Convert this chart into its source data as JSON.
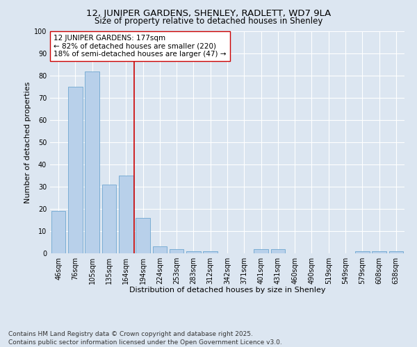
{
  "title_line1": "12, JUNIPER GARDENS, SHENLEY, RADLETT, WD7 9LA",
  "title_line2": "Size of property relative to detached houses in Shenley",
  "xlabel": "Distribution of detached houses by size in Shenley",
  "ylabel": "Number of detached properties",
  "categories": [
    "46sqm",
    "76sqm",
    "105sqm",
    "135sqm",
    "164sqm",
    "194sqm",
    "224sqm",
    "253sqm",
    "283sqm",
    "312sqm",
    "342sqm",
    "371sqm",
    "401sqm",
    "431sqm",
    "460sqm",
    "490sqm",
    "519sqm",
    "549sqm",
    "579sqm",
    "608sqm",
    "638sqm"
  ],
  "values": [
    19,
    75,
    82,
    31,
    35,
    16,
    3,
    2,
    1,
    1,
    0,
    0,
    2,
    2,
    0,
    0,
    0,
    0,
    1,
    1,
    1
  ],
  "bar_color": "#b8d0ea",
  "bar_edgecolor": "#6ea6d0",
  "vline_color": "#cc0000",
  "annotation_text": "12 JUNIPER GARDENS: 177sqm\n← 82% of detached houses are smaller (220)\n18% of semi-detached houses are larger (47) →",
  "annotation_box_color": "#ffffff",
  "annotation_box_edgecolor": "#cc0000",
  "ylim": [
    0,
    100
  ],
  "yticks": [
    0,
    10,
    20,
    30,
    40,
    50,
    60,
    70,
    80,
    90,
    100
  ],
  "bg_color": "#dce6f1",
  "grid_color": "#ffffff",
  "footer_line1": "Contains HM Land Registry data © Crown copyright and database right 2025.",
  "footer_line2": "Contains public sector information licensed under the Open Government Licence v3.0.",
  "title_fontsize": 9.5,
  "subtitle_fontsize": 8.5,
  "axis_label_fontsize": 8,
  "tick_fontsize": 7,
  "annotation_fontsize": 7.5,
  "footer_fontsize": 6.5
}
